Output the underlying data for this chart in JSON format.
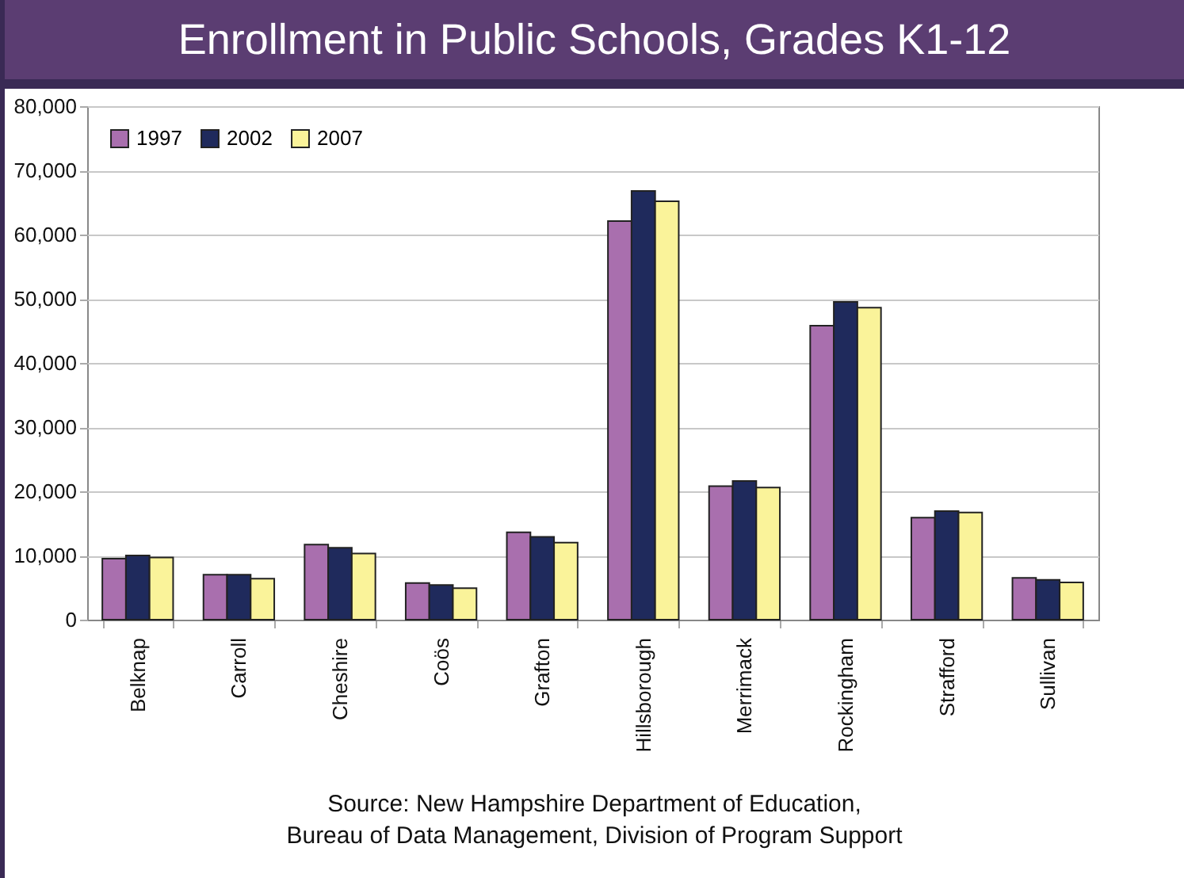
{
  "chart_data": {
    "type": "bar",
    "title": "Enrollment in Public Schools, Grades K1-12",
    "categories": [
      "Belknap",
      "Carroll",
      "Cheshire",
      "Coös",
      "Grafton",
      "Hillsborough",
      "Merrimack",
      "Rockingham",
      "Strafford",
      "Sullivan"
    ],
    "series": [
      {
        "name": "1997",
        "color": "#a96fae",
        "values": [
          9500,
          7000,
          11700,
          5700,
          13600,
          62100,
          20800,
          45800,
          15900,
          6500
        ]
      },
      {
        "name": "2002",
        "color": "#1f2a5c",
        "values": [
          10000,
          7000,
          11200,
          5400,
          12900,
          66800,
          21600,
          49500,
          16900,
          6200
        ]
      },
      {
        "name": "2007",
        "color": "#faf39a",
        "values": [
          9700,
          6400,
          10300,
          4900,
          12000,
          65200,
          20600,
          48600,
          16700,
          5800
        ]
      }
    ],
    "ylim": [
      0,
      80000
    ],
    "yticks": [
      {
        "value": 0,
        "label": "0"
      },
      {
        "value": 10000,
        "label": "10,000"
      },
      {
        "value": 20000,
        "label": "20,000"
      },
      {
        "value": 30000,
        "label": "30,000"
      },
      {
        "value": 40000,
        "label": "40,000"
      },
      {
        "value": 50000,
        "label": "50,000"
      },
      {
        "value": 60000,
        "label": "60,000"
      },
      {
        "value": 70000,
        "label": "70,000"
      },
      {
        "value": 80000,
        "label": "80,000"
      }
    ],
    "grid": "y",
    "legend": "top left",
    "annotations": [
      "Source: New Hampshire Department of Education,",
      "Bureau of Data Management, Division of Program Support"
    ]
  }
}
